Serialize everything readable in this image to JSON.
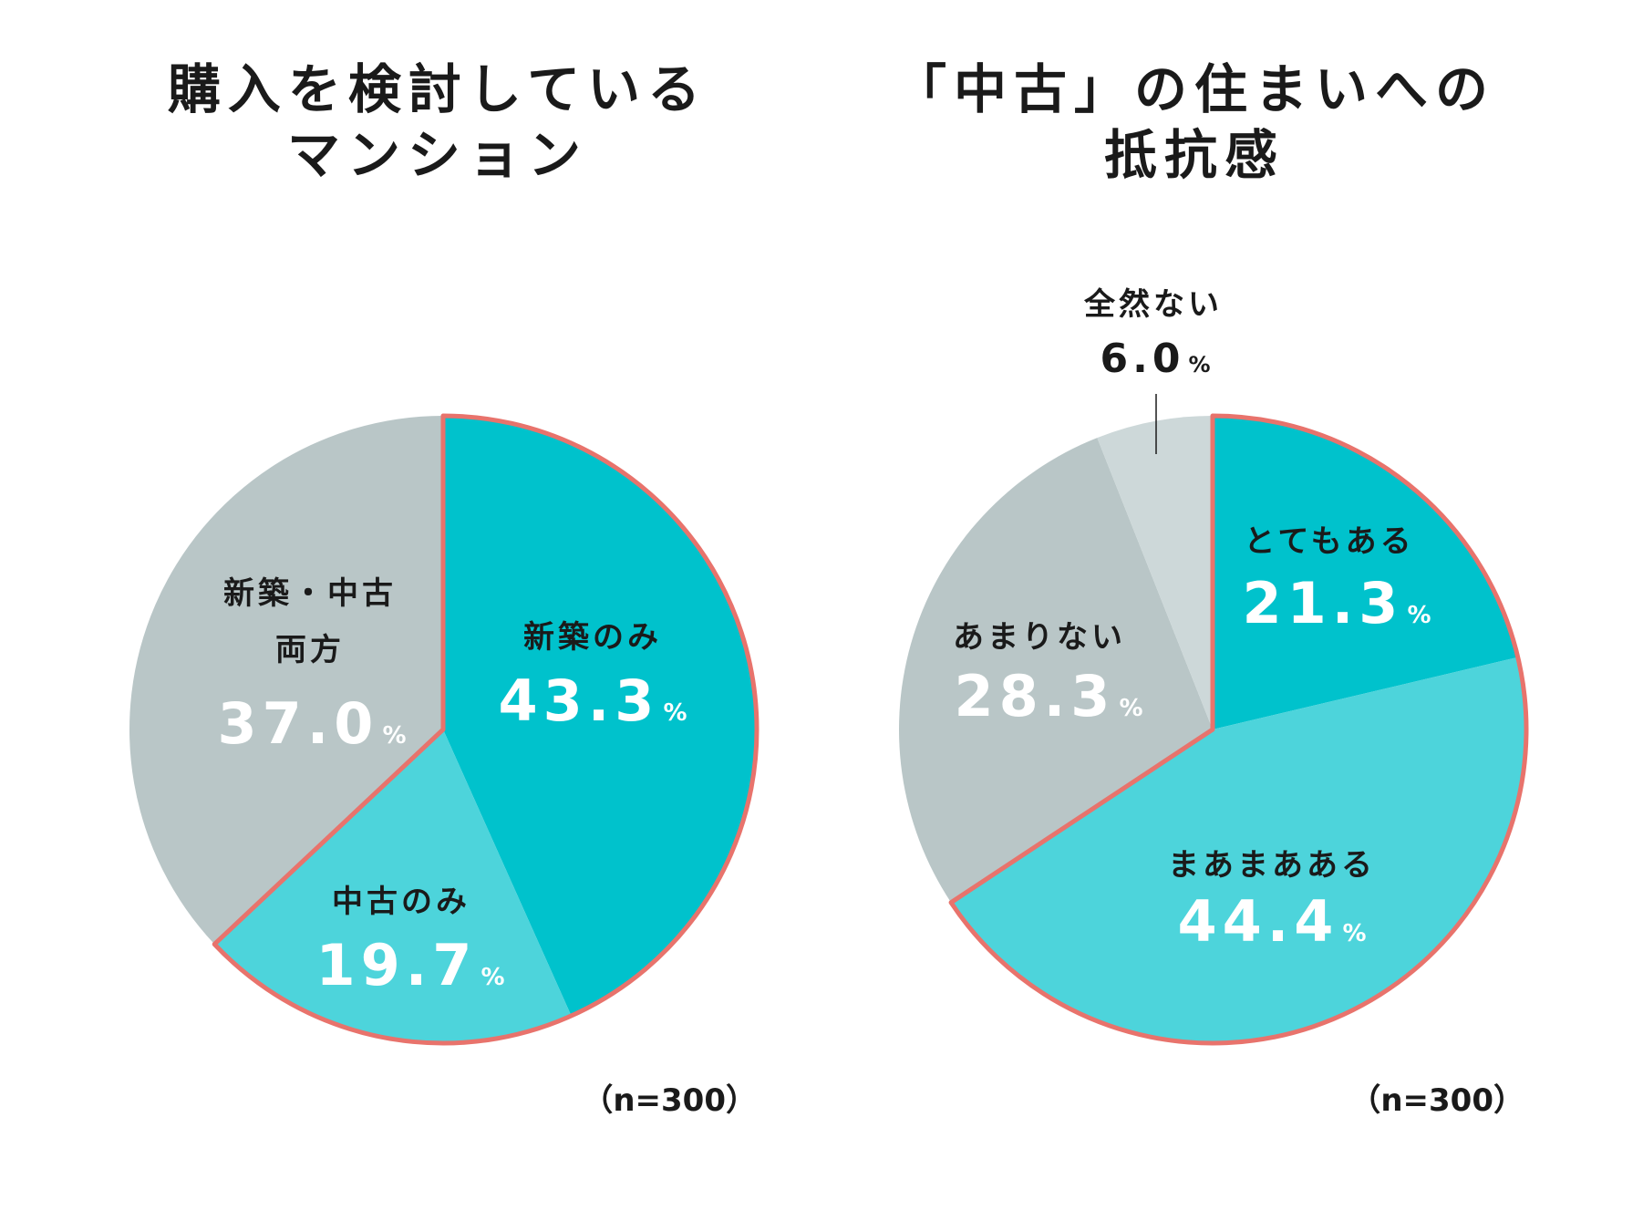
{
  "colors": {
    "accent_dark": "#00c2cc",
    "accent_light": "#4dd4db",
    "gray": "#b9c6c7",
    "gray_light": "#cdd8d9",
    "highlight_border": "#e8736c",
    "text": "#1a1a1a",
    "white": "#ffffff"
  },
  "chart_data": [
    {
      "type": "pie",
      "title_lines": [
        "購入を検討している",
        "マンション"
      ],
      "start": "12 o'clock, clockwise",
      "slices": [
        {
          "label_lines": [
            "新築のみ"
          ],
          "value": 43.3,
          "value_text": "43.3",
          "unit": "%",
          "color": "#00c2cc",
          "highlighted": true
        },
        {
          "label_lines": [
            "中古のみ"
          ],
          "value": 19.7,
          "value_text": "19.7",
          "unit": "%",
          "color": "#4dd4db",
          "highlighted": true
        },
        {
          "label_lines": [
            "新築・中古",
            "両方"
          ],
          "value": 37.0,
          "value_text": "37.0",
          "unit": "%",
          "color": "#b9c6c7",
          "highlighted": false
        }
      ],
      "note": "（n=300）"
    },
    {
      "type": "pie",
      "title_lines": [
        "「中古」の住まいへの",
        "抵抗感"
      ],
      "start": "12 o'clock, clockwise",
      "slices": [
        {
          "label_lines": [
            "とてもある"
          ],
          "value": 21.3,
          "value_text": "21.3",
          "unit": "%",
          "color": "#00c2cc",
          "highlighted": true
        },
        {
          "label_lines": [
            "まあまあある"
          ],
          "value": 44.4,
          "value_text": "44.4",
          "unit": "%",
          "color": "#4dd4db",
          "highlighted": true
        },
        {
          "label_lines": [
            "あまりない"
          ],
          "value": 28.3,
          "value_text": "28.3",
          "unit": "%",
          "color": "#b9c6c7",
          "highlighted": false
        },
        {
          "label_lines": [
            "全然ない"
          ],
          "value": 6.0,
          "value_text": "6.0",
          "unit": "%",
          "color": "#cdd8d9",
          "highlighted": false,
          "label_outside": true
        }
      ],
      "note": "（n=300）"
    }
  ]
}
